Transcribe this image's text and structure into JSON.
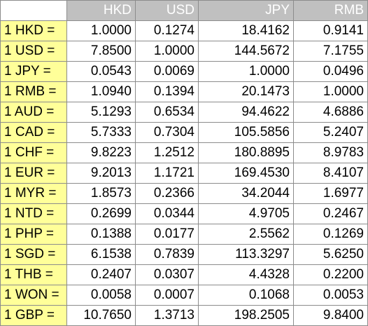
{
  "table": {
    "headers": [
      "HKD",
      "USD",
      "JPY",
      "RMB"
    ],
    "rows": [
      {
        "label": "1 HKD =",
        "values": [
          "1.0000",
          "0.1274",
          "18.4162",
          "0.9141"
        ]
      },
      {
        "label": "1 USD =",
        "values": [
          "7.8500",
          "1.0000",
          "144.5672",
          "7.1755"
        ]
      },
      {
        "label": "1 JPY =",
        "values": [
          "0.0543",
          "0.0069",
          "1.0000",
          "0.0496"
        ]
      },
      {
        "label": "1 RMB =",
        "values": [
          "1.0940",
          "0.1394",
          "20.1473",
          "1.0000"
        ]
      },
      {
        "label": "1 AUD =",
        "values": [
          "5.1293",
          "0.6534",
          "94.4622",
          "4.6886"
        ]
      },
      {
        "label": "1 CAD =",
        "values": [
          "5.7333",
          "0.7304",
          "105.5856",
          "5.2407"
        ]
      },
      {
        "label": "1 CHF =",
        "values": [
          "9.8223",
          "1.2512",
          "180.8895",
          "8.9783"
        ]
      },
      {
        "label": "1 EUR =",
        "values": [
          "9.2013",
          "1.1721",
          "169.4530",
          "8.4107"
        ]
      },
      {
        "label": "1 MYR =",
        "values": [
          "1.8573",
          "0.2366",
          "34.2044",
          "1.6977"
        ]
      },
      {
        "label": "1 NTD =",
        "values": [
          "0.2699",
          "0.0344",
          "4.9705",
          "0.2467"
        ]
      },
      {
        "label": "1 PHP =",
        "values": [
          "0.1388",
          "0.0177",
          "2.5562",
          "0.1269"
        ]
      },
      {
        "label": "1 SGD =",
        "values": [
          "6.1538",
          "0.7839",
          "113.3297",
          "5.6250"
        ]
      },
      {
        "label": "1 THB =",
        "values": [
          "0.2407",
          "0.0307",
          "4.4328",
          "0.2200"
        ]
      },
      {
        "label": "1 WON =",
        "values": [
          "0.0058",
          "0.0007",
          "0.1068",
          "0.0053"
        ]
      },
      {
        "label": "1 GBP =",
        "values": [
          "10.7650",
          "1.3713",
          "198.2505",
          "9.8400"
        ]
      }
    ]
  },
  "colors": {
    "header_bg": "#c0c0c0",
    "header_text": "#ffffff",
    "label_bg": "#ffff99",
    "grid": "#8c8c8c"
  }
}
